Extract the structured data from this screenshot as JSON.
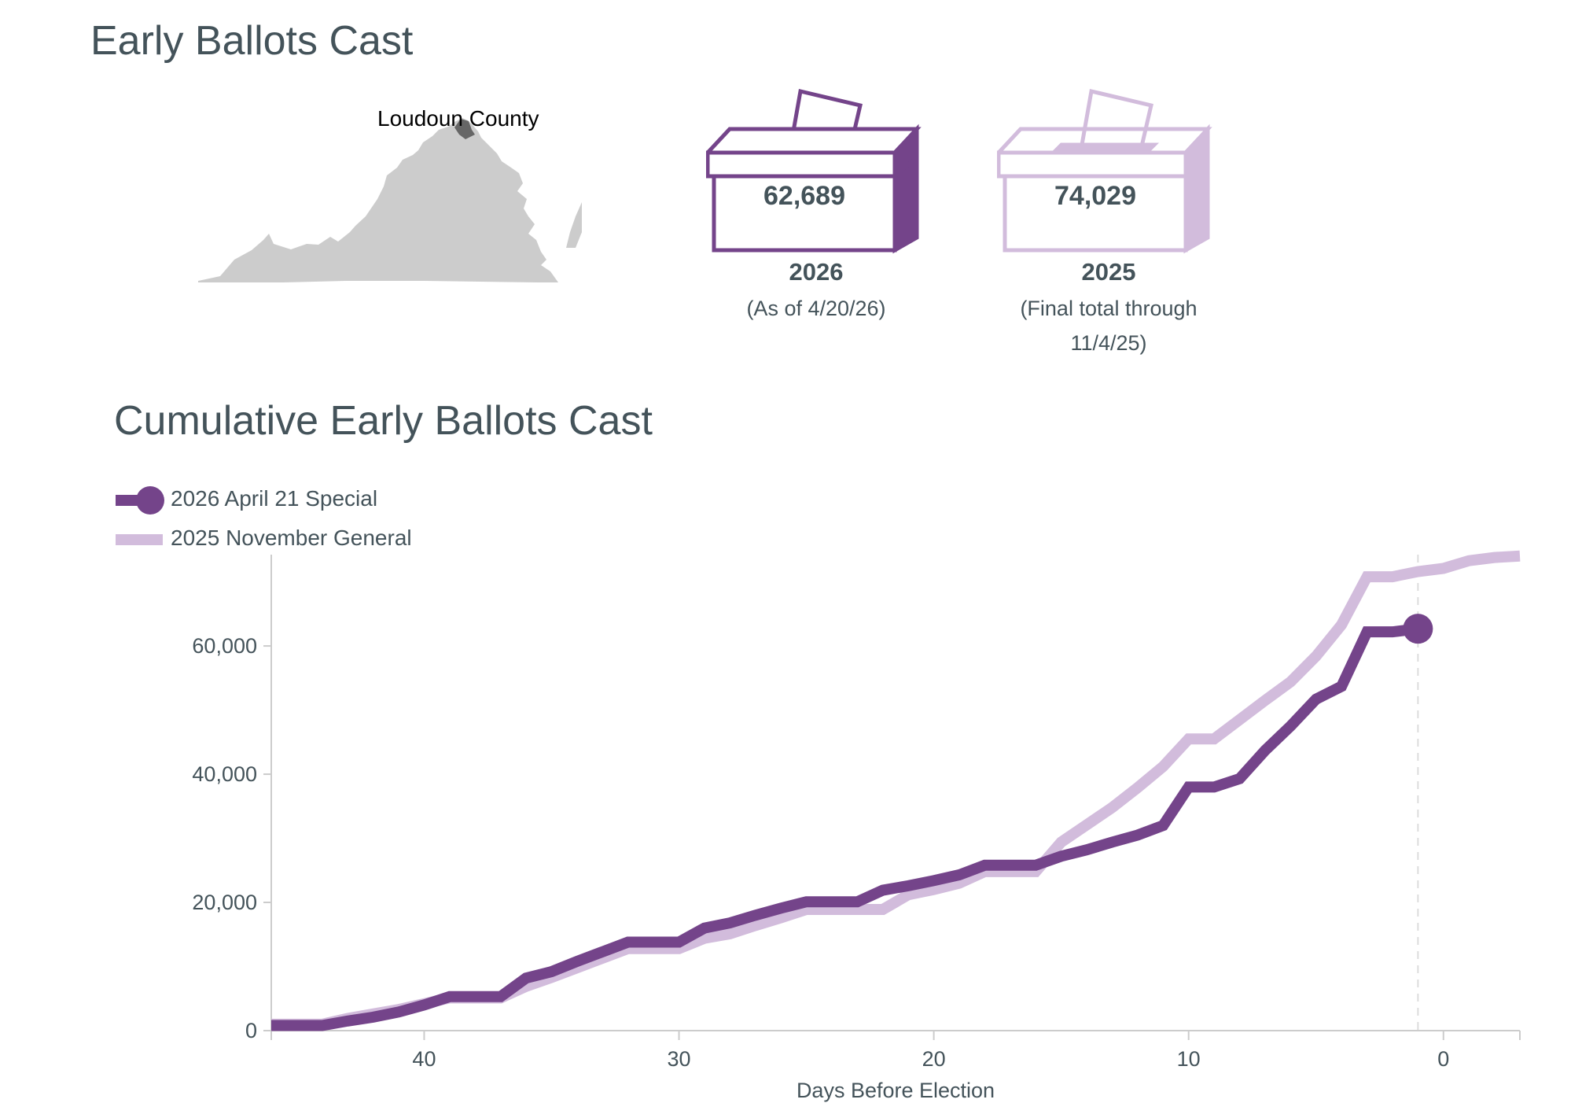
{
  "header": {
    "title": "Early Ballots Cast",
    "chart_title": "Cumulative Early Ballots Cast"
  },
  "map": {
    "county_label": "Loudoun County",
    "state_color": "#cccccc",
    "county_color": "#666666"
  },
  "boxes": [
    {
      "count": "62,689",
      "year": "2026",
      "note": "(As of 4/20/26)",
      "color": "#74448a"
    },
    {
      "count": "74,029",
      "year": "2025",
      "note_line1": "(Final total through",
      "note_line2": "11/4/25)",
      "color": "#d2bcdc"
    }
  ],
  "colors": {
    "series_2026": "#74448a",
    "series_2025": "#d2bcdc",
    "text": "#44535a",
    "axis": "#cccccc"
  },
  "chart_data": {
    "type": "line",
    "title": "Cumulative Early Ballots Cast",
    "xlabel": "Days Before Election",
    "ylabel": "",
    "xlim": [
      46,
      -3
    ],
    "ylim": [
      0,
      74000
    ],
    "x_ticks": [
      40,
      30,
      20,
      10,
      0
    ],
    "x_tick_labels": [
      "40",
      "30",
      "20",
      "10",
      "0"
    ],
    "y_ticks": [
      0,
      20000,
      40000,
      60000
    ],
    "y_tick_labels": [
      "0",
      "20,000",
      "40,000",
      "60,000"
    ],
    "legend_position": "top-left",
    "current_day_marker": 1,
    "series": [
      {
        "name": "2026 April 21 Special",
        "x": [
          46,
          45,
          44,
          43,
          42,
          41,
          40,
          39,
          38,
          37,
          36,
          35,
          34,
          33,
          32,
          31,
          30,
          29,
          28,
          27,
          26,
          25,
          24,
          23,
          22,
          21,
          20,
          19,
          18,
          17,
          16,
          15,
          14,
          13,
          12,
          11,
          10,
          9,
          8,
          7,
          6,
          5,
          4,
          3,
          2,
          1
        ],
        "values": [
          800,
          800,
          800,
          1500,
          2100,
          2900,
          4000,
          5300,
          5300,
          5300,
          8200,
          9200,
          10800,
          12300,
          13800,
          13800,
          13800,
          16000,
          16800,
          18000,
          19100,
          20100,
          20100,
          20100,
          21900,
          22600,
          23400,
          24300,
          25800,
          25800,
          25800,
          27200,
          28200,
          29400,
          30500,
          32000,
          38000,
          38000,
          39300,
          43700,
          47500,
          51700,
          53700,
          62200,
          62200,
          62689
        ]
      },
      {
        "name": "2025 November General",
        "x": [
          46,
          45,
          44,
          43,
          42,
          41,
          40,
          39,
          38,
          37,
          36,
          35,
          34,
          33,
          32,
          31,
          30,
          29,
          28,
          27,
          26,
          25,
          24,
          23,
          22,
          21,
          20,
          19,
          18,
          17,
          16,
          15,
          14,
          13,
          12,
          11,
          10,
          9,
          8,
          7,
          6,
          5,
          4,
          3,
          2,
          1,
          0,
          -1,
          -2,
          -3
        ],
        "values": [
          1000,
          1000,
          1000,
          1900,
          2600,
          3300,
          4200,
          5100,
          5100,
          5100,
          6900,
          8300,
          9800,
          11300,
          12800,
          12800,
          12800,
          14400,
          15100,
          16400,
          17600,
          18900,
          18900,
          18900,
          18900,
          21200,
          22000,
          23000,
          24800,
          24800,
          24800,
          29400,
          32100,
          34800,
          37900,
          41200,
          45500,
          45500,
          48500,
          51500,
          54400,
          58400,
          63300,
          70800,
          70800,
          71600,
          72100,
          73300,
          73800,
          74029
        ]
      }
    ]
  }
}
